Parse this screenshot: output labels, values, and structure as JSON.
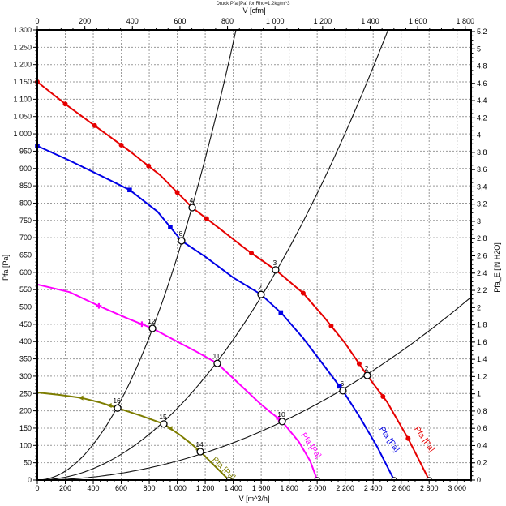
{
  "chart_data": {
    "type": "line",
    "title": "Druck Pfa [Pa] for Rho=1.2kg/m^3",
    "grid": {
      "color": "#999999",
      "dash": "2,2",
      "on": true
    },
    "frame_color": "#000000",
    "axes": {
      "bottom": {
        "label": "V [m^3/h]",
        "min": 0,
        "max": 3100,
        "minor_step": 50,
        "ticks": [
          [
            0,
            "0"
          ],
          [
            200,
            "200"
          ],
          [
            400,
            "400"
          ],
          [
            600,
            "600"
          ],
          [
            800,
            "800"
          ],
          [
            1000,
            "1 000"
          ],
          [
            1200,
            "1 200"
          ],
          [
            1400,
            "1 400"
          ],
          [
            1600,
            "1 600"
          ],
          [
            1800,
            "1 800"
          ],
          [
            2000,
            "2 000"
          ],
          [
            2200,
            "2 200"
          ],
          [
            2400,
            "2 400"
          ],
          [
            2600,
            "2 600"
          ],
          [
            2800,
            "2 800"
          ],
          [
            3000,
            "3 000"
          ]
        ]
      },
      "top": {
        "label": "V [cfm]",
        "factor_to_m3h": 1.699,
        "minor_step": 50,
        "ticks": [
          [
            0,
            "0"
          ],
          [
            200,
            "200"
          ],
          [
            400,
            "400"
          ],
          [
            600,
            "600"
          ],
          [
            800,
            "800"
          ],
          [
            1000,
            "1 000"
          ],
          [
            1200,
            "1 200"
          ],
          [
            1400,
            "1 400"
          ],
          [
            1600,
            "1 600"
          ],
          [
            1800,
            "1 800"
          ]
        ]
      },
      "left": {
        "label": "Pfa [Pa]",
        "min": 0,
        "max": 1300,
        "minor_step": 10,
        "ticks": [
          [
            1300,
            "1 300"
          ],
          [
            1250,
            "1 250"
          ],
          [
            1200,
            "1 200"
          ],
          [
            1150,
            "1 150"
          ],
          [
            1100,
            "1 100"
          ],
          [
            1050,
            "1 050"
          ],
          [
            1000,
            "1 000"
          ],
          [
            950,
            "950"
          ],
          [
            900,
            "900"
          ],
          [
            850,
            "850"
          ],
          [
            800,
            "800"
          ],
          [
            750,
            "750"
          ],
          [
            700,
            "700"
          ],
          [
            650,
            "650"
          ],
          [
            600,
            "600"
          ],
          [
            550,
            "550"
          ],
          [
            500,
            "500"
          ],
          [
            450,
            "450"
          ],
          [
            400,
            "400"
          ],
          [
            350,
            "350"
          ],
          [
            300,
            "300"
          ],
          [
            250,
            "250"
          ],
          [
            200,
            "200"
          ],
          [
            150,
            "150"
          ],
          [
            100,
            "100"
          ],
          [
            50,
            "50"
          ],
          [
            0,
            "0"
          ]
        ]
      },
      "right": {
        "label": "Pfa_E [iN H2O]",
        "factor_to_pa": 249.1,
        "minor_step": 0.05,
        "ticks": [
          [
            5.2,
            "5,2"
          ],
          [
            5,
            "5"
          ],
          [
            4.8,
            "4,8"
          ],
          [
            4.6,
            "4,6"
          ],
          [
            4.4,
            "4,4"
          ],
          [
            4.2,
            "4,2"
          ],
          [
            4,
            "4"
          ],
          [
            3.8,
            "3,8"
          ],
          [
            3.6,
            "3,6"
          ],
          [
            3.4,
            "3,4"
          ],
          [
            3.2,
            "3,2"
          ],
          [
            3,
            "3"
          ],
          [
            2.8,
            "2,8"
          ],
          [
            2.6,
            "2,6"
          ],
          [
            2.4,
            "2,4"
          ],
          [
            2.2,
            "2,2"
          ],
          [
            2,
            "2"
          ],
          [
            1.8,
            "1,8"
          ],
          [
            1.6,
            "1,6"
          ],
          [
            1.4,
            "1,4"
          ],
          [
            1.2,
            "1,2"
          ],
          [
            1,
            "1"
          ],
          [
            0.8,
            "0,8"
          ],
          [
            0.6,
            "0,6"
          ],
          [
            0.4,
            "0,4"
          ],
          [
            0.2,
            "0,2"
          ],
          [
            0,
            "0"
          ]
        ]
      }
    },
    "series": [
      {
        "name": "fan-curve-speed-max",
        "curve_label": "Pfa [Pa]",
        "color": "#e60000",
        "marker": "circle",
        "points": [
          [
            0,
            1150
          ],
          [
            220,
            1080
          ],
          [
            440,
            1015
          ],
          [
            660,
            950
          ],
          [
            880,
            880
          ],
          [
            1107,
            787
          ],
          [
            1300,
            727
          ],
          [
            1500,
            664
          ],
          [
            1703,
            607
          ],
          [
            1900,
            540
          ],
          [
            2050,
            470
          ],
          [
            2200,
            395
          ],
          [
            2358,
            302
          ],
          [
            2500,
            225
          ],
          [
            2650,
            120
          ],
          [
            2800,
            0
          ]
        ],
        "marker_v": [
          0,
          200,
          410,
          600,
          795,
          1000,
          1210,
          1530,
          1900,
          2100,
          2300,
          2470,
          2650
        ],
        "end_v": 2800,
        "label_v": 2640,
        "label_p": 148,
        "label_angle": 55
      },
      {
        "name": "fan-curve-speed-2",
        "curve_label": "Pfa [Pa]",
        "color": "#0000e6",
        "marker": "square",
        "points": [
          [
            0,
            965
          ],
          [
            220,
            925
          ],
          [
            440,
            882
          ],
          [
            660,
            838
          ],
          [
            860,
            775
          ],
          [
            1031,
            691
          ],
          [
            1200,
            645
          ],
          [
            1400,
            585
          ],
          [
            1599,
            536
          ],
          [
            1750,
            480
          ],
          [
            1900,
            410
          ],
          [
            2050,
            330
          ],
          [
            2184,
            258
          ],
          [
            2300,
            185
          ],
          [
            2430,
            95
          ],
          [
            2550,
            0
          ]
        ],
        "marker_v": [
          0,
          660,
          950,
          1740,
          2160
        ],
        "end_v": 2550,
        "label_v": 2390,
        "label_p": 148,
        "label_angle": 55
      },
      {
        "name": "fan-curve-speed-3",
        "curve_label": "Pfa [Pa]",
        "color": "#ff00ff",
        "marker": "plus",
        "points": [
          [
            0,
            565
          ],
          [
            230,
            543
          ],
          [
            456,
            500
          ],
          [
            650,
            466
          ],
          [
            823,
            438
          ],
          [
            1000,
            400
          ],
          [
            1150,
            368
          ],
          [
            1286,
            337
          ],
          [
            1450,
            275
          ],
          [
            1600,
            218
          ],
          [
            1750,
            169
          ],
          [
            1870,
            110
          ],
          [
            1950,
            55
          ],
          [
            2000,
            0
          ]
        ],
        "marker_v": [
          440,
          747,
          1726
        ],
        "end_v": 2000,
        "label_v": 1830,
        "label_p": 130,
        "label_angle": 55
      },
      {
        "name": "fan-curve-speed-min",
        "curve_label": "Pfa [Pa]",
        "color": "#7d7d00",
        "marker": "tri",
        "points": [
          [
            0,
            253
          ],
          [
            160,
            246
          ],
          [
            320,
            237
          ],
          [
            450,
            224
          ],
          [
            574,
            208
          ],
          [
            740,
            186
          ],
          [
            904,
            162
          ],
          [
            1020,
            130
          ],
          [
            1100,
            105
          ],
          [
            1165,
            82
          ],
          [
            1250,
            48
          ],
          [
            1370,
            0
          ]
        ],
        "marker_v": [
          313,
          516,
          950,
          1150
        ],
        "end_v": 1370,
        "label_v": 1195,
        "label_p": 58,
        "label_angle": 45
      }
    ],
    "system_curves": [
      {
        "name": "system-curve-steep",
        "k": 0.000645,
        "color": "#111111"
      },
      {
        "name": "system-curve-mid",
        "k": 0.000207,
        "color": "#111111"
      },
      {
        "name": "system-curve-flat",
        "k": 5.5e-05,
        "color": "#111111"
      }
    ],
    "operating_points": [
      {
        "v": 1107,
        "p": 787,
        "label": "4"
      },
      {
        "v": 1031,
        "p": 691,
        "label": "8"
      },
      {
        "v": 823,
        "p": 438,
        "label": "12"
      },
      {
        "v": 574,
        "p": 208,
        "label": "16"
      },
      {
        "v": 1703,
        "p": 607,
        "label": "3"
      },
      {
        "v": 1599,
        "p": 536,
        "label": "7"
      },
      {
        "v": 1286,
        "p": 337,
        "label": "11"
      },
      {
        "v": 904,
        "p": 162,
        "label": "15"
      },
      {
        "v": 2358,
        "p": 302,
        "label": "2"
      },
      {
        "v": 2184,
        "p": 258,
        "label": "6"
      },
      {
        "v": 1750,
        "p": 169,
        "label": "10"
      },
      {
        "v": 1165,
        "p": 82,
        "label": "14"
      }
    ]
  }
}
